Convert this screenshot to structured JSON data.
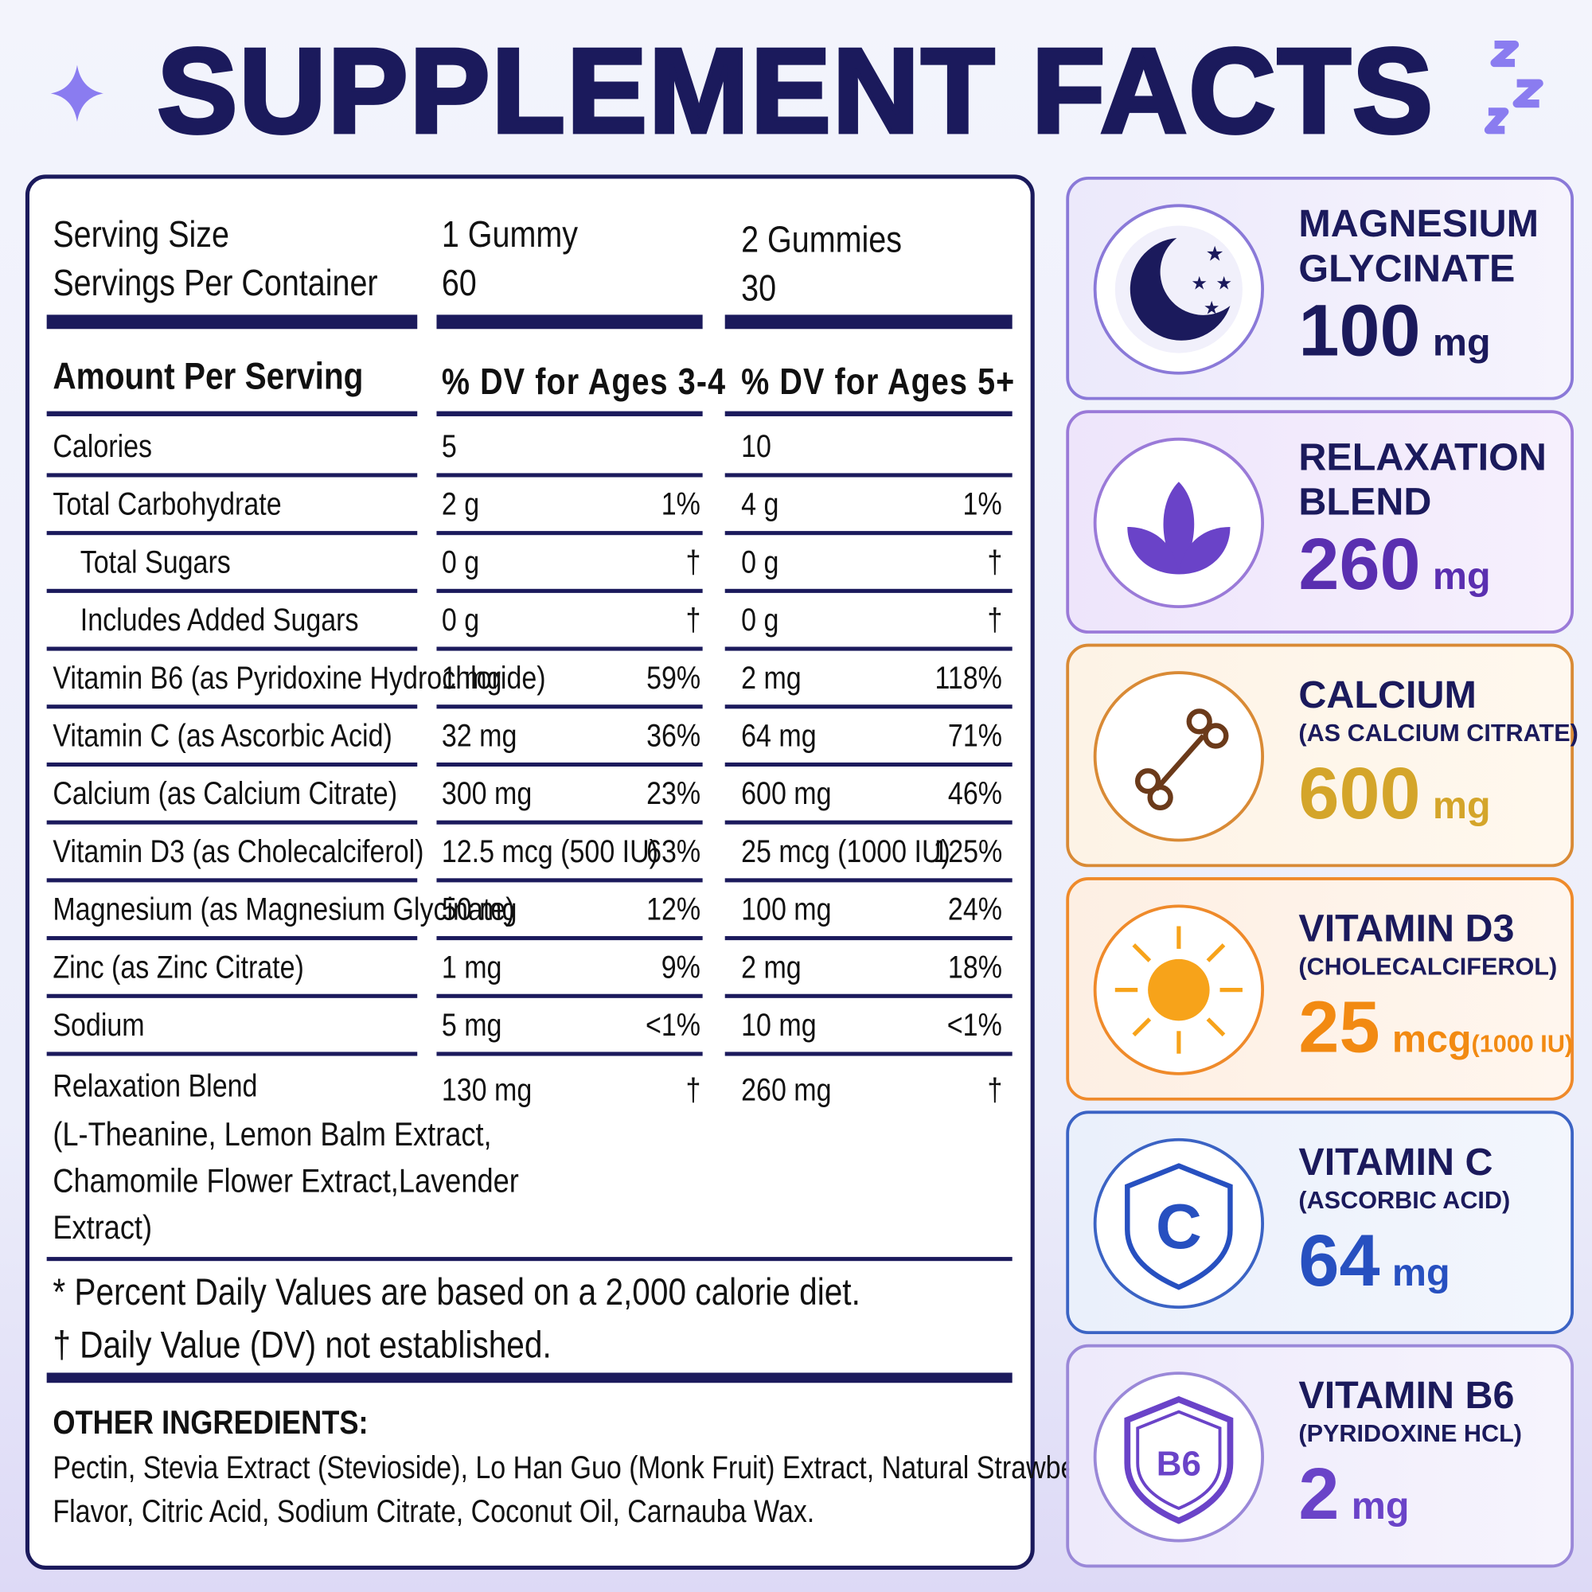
{
  "title": "SUPPLEMENT FACTS",
  "serving": {
    "labels": [
      "Serving Size",
      "Servings Per Container"
    ],
    "col1": [
      "1 Gummy",
      "60"
    ],
    "col2": [
      "2 Gummies",
      "30"
    ]
  },
  "header": [
    "Amount Per Serving",
    "% DV for Ages 3-4",
    "% DV for Ages 5+"
  ],
  "rows": [
    {
      "name": "Calories",
      "amt1": "5",
      "amt2": "10"
    },
    {
      "name": "Total Carbohydrate",
      "amt1": "2 g",
      "dv1": "1%",
      "amt2": "4 g",
      "dv2": "1%"
    },
    {
      "name": "Total Sugars",
      "indent": true,
      "amt1": "0 g",
      "dv1": "†",
      "amt2": "0 g",
      "dv2": "†"
    },
    {
      "name": "Includes Added Sugars",
      "indent": true,
      "amt1": "0 g",
      "dv1": "†",
      "amt2": "0 g",
      "dv2": "†"
    },
    {
      "name": "Vitamin B6 (as Pyridoxine Hydrochloride)",
      "amt1": "1 mg",
      "dv1": "59%",
      "amt2": "2 mg",
      "dv2": "118%"
    },
    {
      "name": "Vitamin C (as Ascorbic Acid)",
      "amt1": "32 mg",
      "dv1": "36%",
      "amt2": "64 mg",
      "dv2": "71%"
    },
    {
      "name": "Calcium (as Calcium Citrate)",
      "amt1": "300 mg",
      "dv1": "23%",
      "amt2": "600 mg",
      "dv2": "46%"
    },
    {
      "name": "Vitamin D3 (as Cholecalciferol)",
      "amt1": "12.5 mcg (500 IU)",
      "dv1": "63%",
      "amt2": "25 mcg (1000 IU)",
      "dv2": "125%"
    },
    {
      "name": "Magnesium (as Magnesium Glycinate)",
      "amt1": "50 mg",
      "dv1": "12%",
      "amt2": "100 mg",
      "dv2": "24%"
    },
    {
      "name": "Zinc (as Zinc Citrate)",
      "amt1": "1 mg",
      "dv1": "9%",
      "amt2": "2 mg",
      "dv2": "18%"
    },
    {
      "name": "Sodium",
      "amt1": "5 mg",
      "dv1": "<1%",
      "amt2": "10 mg",
      "dv2": "<1%"
    }
  ],
  "blend": {
    "name": "Relaxation Blend",
    "detail": [
      "(L-Theanine,  Lemon Balm Extract,",
      "Chamomile Flower Extract,Lavender",
      "Extract)"
    ],
    "amt1": "130 mg",
    "dv1": "†",
    "amt2": "260 mg",
    "dv2": "†"
  },
  "footnotes": [
    "* Percent Daily Values are based on a 2,000 calorie diet.",
    "† Daily Value (DV) not established."
  ],
  "other_ingredients": {
    "title": "OTHER INGREDIENTS:",
    "lines": [
      "Pectin, Stevia Extract (Stevioside), Lo Han Guo (Monk Fruit) Extract, Natural Strawberry",
      "Flavor, Citric Acid, Sodium Citrate, Coconut Oil, Carnauba Wax."
    ]
  },
  "cards": [
    {
      "name": "MAGNESIUM\nGLYCINATE",
      "amount": "100",
      "unit": "mg"
    },
    {
      "name": "RELAXATION\nBLEND",
      "amount": "260",
      "unit": "mg"
    },
    {
      "name": "CALCIUM",
      "note": "(AS CALCIUM CITRATE)",
      "amount": "600",
      "unit": "mg"
    },
    {
      "name": "VITAMIN D3",
      "note": "(CHOLECALCIFEROL)",
      "amount": "25",
      "unit": "mcg",
      "extra": "(1000 IU)"
    },
    {
      "name": "VITAMIN C",
      "note": "(ASCORBIC ACID)",
      "amount": "64",
      "unit": "mg"
    },
    {
      "name": "VITAMIN B6",
      "note": "(PYRIDOXINE HCL)",
      "amount": "2",
      "unit": "mg"
    }
  ]
}
